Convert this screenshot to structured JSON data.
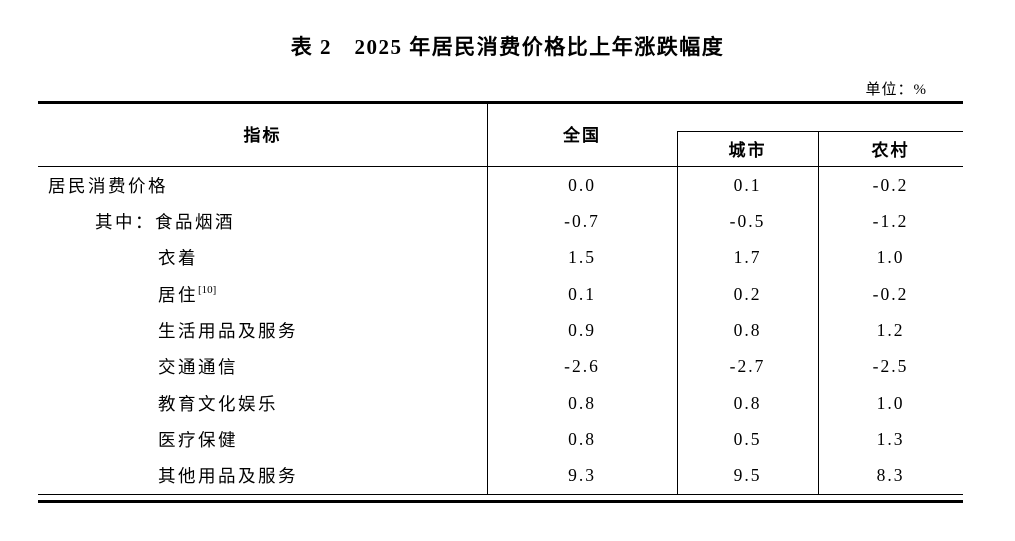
{
  "title": "表 2　2025 年居民消费价格比上年涨跌幅度",
  "unit_label": "单位：%",
  "colors": {
    "text": "#000000",
    "background": "#ffffff",
    "rule": "#000000"
  },
  "table": {
    "col_headers": {
      "indicator": "指标",
      "national": "全国",
      "urban": "城市",
      "rural": "农村"
    },
    "rows": [
      {
        "label": "居民消费价格",
        "indent": 0,
        "national": "0.0",
        "urban": "0.1",
        "rural": "-0.2"
      },
      {
        "label": "其中：食品烟酒",
        "indent": 1,
        "national": "-0.7",
        "urban": "-0.5",
        "rural": "-1.2"
      },
      {
        "label": "衣着",
        "indent": 2,
        "national": "1.5",
        "urban": "1.7",
        "rural": "1.0"
      },
      {
        "label": "居住",
        "sup": "[10]",
        "indent": 2,
        "national": "0.1",
        "urban": "0.2",
        "rural": "-0.2"
      },
      {
        "label": "生活用品及服务",
        "indent": 2,
        "national": "0.9",
        "urban": "0.8",
        "rural": "1.2"
      },
      {
        "label": "交通通信",
        "indent": 2,
        "national": "-2.6",
        "urban": "-2.7",
        "rural": "-2.5"
      },
      {
        "label": "教育文化娱乐",
        "indent": 2,
        "national": "0.8",
        "urban": "0.8",
        "rural": "1.0"
      },
      {
        "label": "医疗保健",
        "indent": 2,
        "national": "0.8",
        "urban": "0.5",
        "rural": "1.3"
      },
      {
        "label": "其他用品及服务",
        "indent": 2,
        "national": "9.3",
        "urban": "9.5",
        "rural": "8.3"
      }
    ]
  }
}
